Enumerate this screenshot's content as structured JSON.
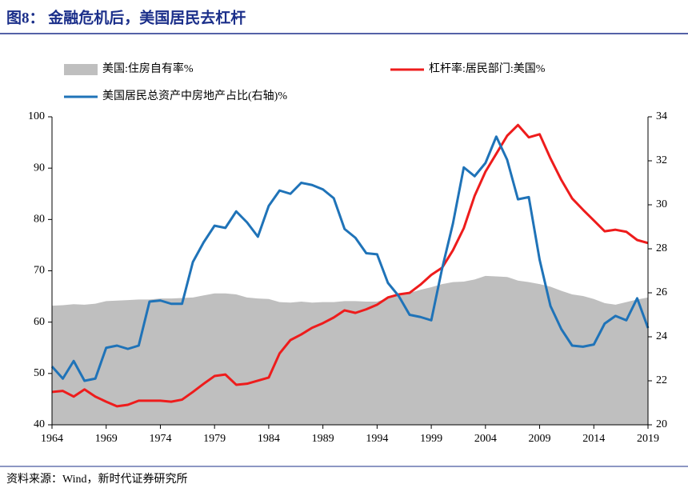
{
  "chart_data": {
    "type": "line",
    "title": "图8： 金融危机后，美国居民去杠杆",
    "source": "资料来源：Wind，新时代证券研究所",
    "x": [
      1964,
      1965,
      1966,
      1967,
      1968,
      1969,
      1970,
      1971,
      1972,
      1973,
      1974,
      1975,
      1976,
      1977,
      1978,
      1979,
      1980,
      1981,
      1982,
      1983,
      1984,
      1985,
      1986,
      1987,
      1988,
      1989,
      1990,
      1991,
      1992,
      1993,
      1994,
      1995,
      1996,
      1997,
      1998,
      1999,
      2000,
      2001,
      2002,
      2003,
      2004,
      2005,
      2006,
      2007,
      2008,
      2009,
      2010,
      2011,
      2012,
      2013,
      2014,
      2015,
      2016,
      2017,
      2018,
      2019
    ],
    "xlim": [
      1964,
      2019
    ],
    "xticks": [
      1964,
      1969,
      1974,
      1979,
      1984,
      1989,
      1994,
      1999,
      2004,
      2009,
      2014,
      2019
    ],
    "ylim": [
      40,
      100
    ],
    "yticks": [
      40,
      50,
      60,
      70,
      80,
      90,
      100
    ],
    "y2lim": [
      20,
      34
    ],
    "y2ticks": [
      20,
      22,
      24,
      26,
      28,
      30,
      32,
      34
    ],
    "series": [
      {
        "name": "美国:住房自有率%",
        "color": "#bfbfbf",
        "style": "area",
        "values": [
          63.2,
          63.3,
          63.5,
          63.4,
          63.6,
          64.1,
          64.2,
          64.3,
          64.4,
          64.4,
          64.6,
          64.6,
          64.7,
          64.8,
          65.2,
          65.6,
          65.6,
          65.4,
          64.8,
          64.6,
          64.5,
          63.9,
          63.8,
          64.0,
          63.8,
          63.9,
          63.9,
          64.1,
          64.1,
          64.0,
          64.0,
          64.7,
          65.4,
          65.7,
          66.3,
          66.8,
          67.4,
          67.8,
          67.9,
          68.3,
          69.0,
          68.9,
          68.8,
          68.1,
          67.8,
          67.4,
          66.9,
          66.1,
          65.4,
          65.1,
          64.5,
          63.7,
          63.4,
          63.9,
          64.4,
          64.8
        ]
      },
      {
        "name": "杠杆率:居民部门:美国%",
        "color": "#ee1c1c",
        "style": "line",
        "values": [
          46.4,
          46.6,
          45.5,
          46.9,
          45.5,
          44.5,
          43.6,
          43.9,
          44.7,
          44.7,
          44.7,
          44.5,
          44.9,
          46.4,
          48.0,
          49.5,
          49.8,
          47.8,
          48.0,
          48.6,
          49.2,
          53.9,
          56.5,
          57.6,
          58.9,
          59.8,
          60.9,
          62.3,
          61.8,
          62.5,
          63.4,
          64.8,
          65.4,
          65.7,
          67.3,
          69.2,
          70.6,
          74.0,
          78.3,
          84.6,
          89.3,
          92.8,
          96.3,
          98.4,
          96.0,
          96.6,
          91.9,
          87.7,
          84.1,
          81.9,
          79.8,
          77.7,
          78.0,
          77.6,
          76.0,
          75.4
        ]
      },
      {
        "name": "美国居民总资产中房地产占比(右轴)%",
        "color": "#1f73b8",
        "style": "line",
        "axis": "y2",
        "values": [
          22.65,
          22.1,
          22.9,
          22.0,
          22.1,
          23.5,
          23.6,
          23.45,
          23.6,
          25.6,
          25.65,
          25.5,
          25.5,
          27.4,
          28.3,
          29.05,
          28.95,
          29.7,
          29.2,
          28.55,
          29.95,
          30.65,
          30.5,
          31.0,
          30.9,
          30.7,
          30.3,
          28.9,
          28.5,
          27.8,
          27.75,
          26.45,
          25.85,
          25.0,
          24.9,
          24.75,
          27.1,
          29.15,
          31.7,
          31.3,
          31.9,
          33.1,
          32.05,
          30.25,
          30.35,
          27.5,
          25.4,
          24.35,
          23.6,
          23.55,
          23.65,
          24.6,
          24.95,
          24.75,
          25.75,
          24.4
        ]
      }
    ]
  }
}
